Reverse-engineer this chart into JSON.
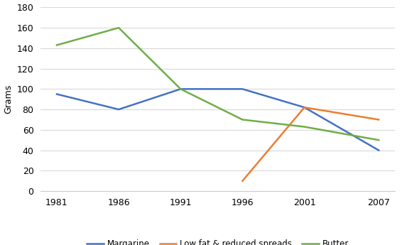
{
  "years": [
    1981,
    1986,
    1991,
    1996,
    2001,
    2007
  ],
  "margarine": [
    95,
    80,
    100,
    100,
    82,
    40
  ],
  "low_fat_years": [
    1996,
    2001,
    2007
  ],
  "low_fat": [
    10,
    82,
    70
  ],
  "butter": [
    143,
    160,
    100,
    70,
    63,
    50
  ],
  "margarine_color": "#4472C4",
  "low_fat_color": "#ED7D31",
  "butter_color": "#70AD47",
  "ylabel": "Grams",
  "ylim": [
    0,
    180
  ],
  "yticks": [
    0,
    20,
    40,
    60,
    80,
    100,
    120,
    140,
    160,
    180
  ],
  "xticks": [
    1981,
    1986,
    1991,
    1996,
    2001,
    2007
  ],
  "legend_labels": [
    "Margarine",
    "Low fat & reduced spreads",
    "Butter"
  ],
  "background_color": "#ffffff",
  "grid_color": "#d9d9d9",
  "linewidth": 1.8
}
